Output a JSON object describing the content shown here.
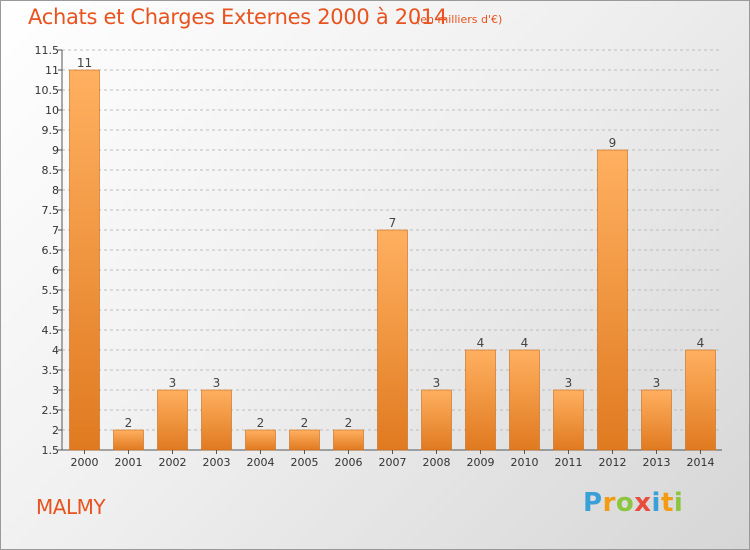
{
  "title": "Achats et Charges Externes 2000 à 2014",
  "unit": "(en milliers d'€)",
  "town": "MALMY",
  "logo": {
    "letters": [
      "P",
      "r",
      "o",
      "x",
      "i",
      "t",
      "i"
    ],
    "colors": [
      "#3aa0d8",
      "#f39c12",
      "#8cc63f",
      "#e74c3c",
      "#3aa0d8",
      "#f39c12",
      "#8cc63f"
    ]
  },
  "colors": {
    "bar_light": "#ffb060",
    "bar_dark": "#e07a20",
    "bar_edge": "#c96a18",
    "text_accent": "#e8531f"
  },
  "chart_data": {
    "type": "bar",
    "categories": [
      "2000",
      "2001",
      "2002",
      "2003",
      "2004",
      "2005",
      "2006",
      "2007",
      "2008",
      "2009",
      "2010",
      "2011",
      "2012",
      "2013",
      "2014"
    ],
    "values": [
      11,
      2,
      3,
      3,
      2,
      2,
      2,
      7,
      3,
      4,
      4,
      3,
      9,
      3,
      4
    ],
    "value_labels": [
      "11",
      "2",
      "3",
      "3",
      "2",
      "2",
      "2",
      "7",
      "3",
      "4",
      "4",
      "3",
      "9",
      "3",
      "4"
    ],
    "ylim": [
      1.5,
      11.5
    ],
    "yticks": [
      1.5,
      2,
      2.5,
      3,
      3.5,
      4,
      4.5,
      5,
      5.5,
      6,
      6.5,
      7,
      7.5,
      8,
      8.5,
      9,
      9.5,
      10,
      10.5,
      11,
      11.5
    ],
    "ytick_labels": [
      "1.5",
      "2",
      "2.5",
      "3",
      "3.5",
      "4",
      "4.5",
      "5",
      "5.5",
      "6",
      "6.5",
      "7",
      "7.5",
      "8",
      "8.5",
      "9",
      "9.5",
      "10",
      "10.5",
      "11",
      "11.5"
    ],
    "grid": true,
    "grid_style": "dashed horizontal",
    "xlabel": "",
    "ylabel": ""
  }
}
